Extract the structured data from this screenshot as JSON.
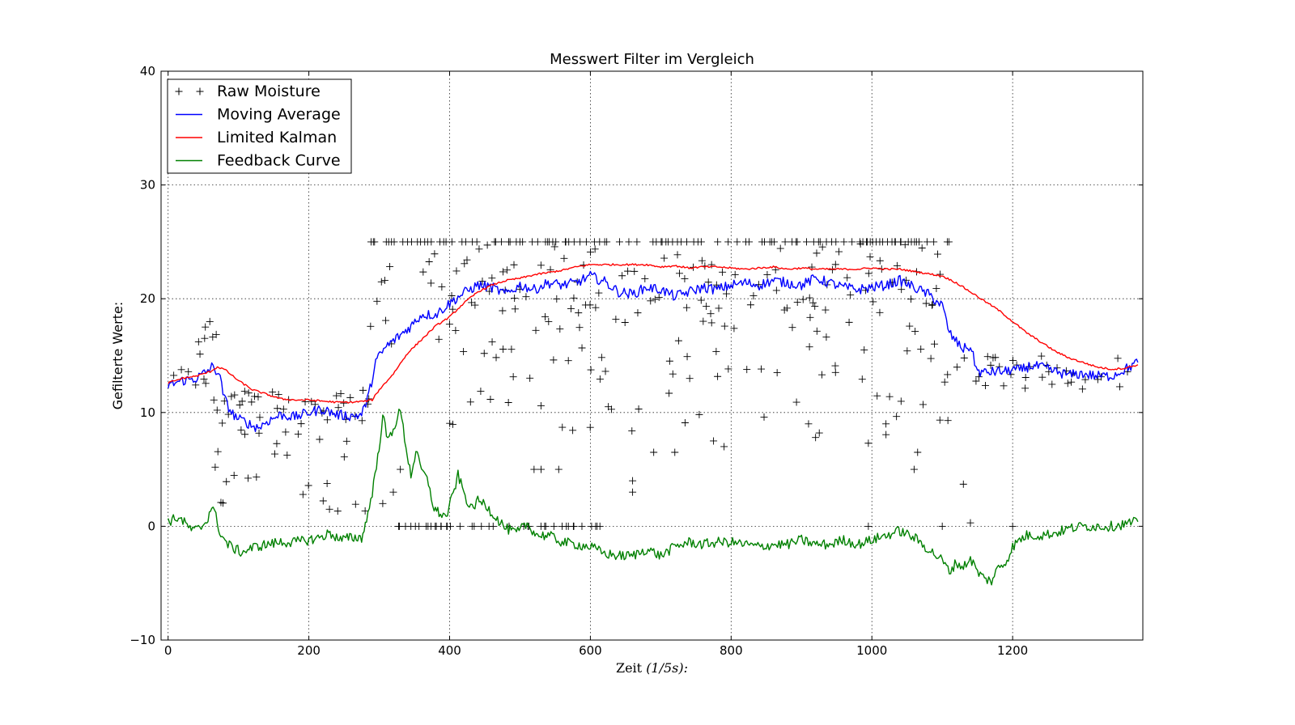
{
  "chart_data": {
    "type": "line",
    "title": "Messwert Filter im Vergleich",
    "xlabel": "Zeit",
    "xlabel_math": "(1/5s):",
    "ylabel": "Gefilterte Werte:",
    "xlim": [
      -10,
      1385
    ],
    "ylim": [
      -10,
      40
    ],
    "xticks": [
      0,
      200,
      400,
      600,
      800,
      1000,
      1200
    ],
    "yticks": [
      -10,
      0,
      10,
      20,
      30,
      40
    ],
    "xtick_labels": [
      "0",
      "200",
      "400",
      "600",
      "800",
      "1000",
      "1200"
    ],
    "ytick_labels": [
      "−10",
      "0",
      "10",
      "20",
      "30",
      "40"
    ],
    "grid": true,
    "legend_position": "top-left",
    "legend": [
      "Raw Moisture",
      "Moving Average",
      "Limited Kalman",
      "Feedback Curve"
    ],
    "series": [
      {
        "name": "Raw Moisture",
        "style": "markers",
        "marker": "+",
        "color": "#000000",
        "segments": [
          {
            "x0": 0,
            "x1": 60,
            "level": 13,
            "spread": 1
          },
          {
            "x0": 40,
            "x1": 70,
            "level": 16.5,
            "spread": 2
          },
          {
            "x0": 60,
            "x1": 285,
            "level": 10.5,
            "spread": 1.5
          },
          {
            "x0": 60,
            "x1": 285,
            "level": 5,
            "spread": 4
          },
          {
            "x0": 285,
            "x1": 400,
            "level": 20,
            "spread": 4
          },
          {
            "x0": 285,
            "x1": 1110,
            "level": 25,
            "spread": 0
          },
          {
            "x0": 400,
            "x1": 1110,
            "level": 22,
            "spread": 3
          },
          {
            "x0": 400,
            "x1": 1110,
            "level": 14,
            "spread": 6
          },
          {
            "x0": 320,
            "x1": 620,
            "level": 0,
            "spread": 0
          },
          {
            "x0": 1110,
            "x1": 1380,
            "level": 13.5,
            "spread": 1.5
          }
        ],
        "outliers": [
          {
            "x": 305,
            "y": 2
          },
          {
            "x": 320,
            "y": 3
          },
          {
            "x": 330,
            "y": 5
          },
          {
            "x": 530,
            "y": 5
          },
          {
            "x": 555,
            "y": 5
          },
          {
            "x": 520,
            "y": 5
          },
          {
            "x": 660,
            "y": 4
          },
          {
            "x": 660,
            "y": 3
          },
          {
            "x": 690,
            "y": 6.5
          },
          {
            "x": 720,
            "y": 6.5
          },
          {
            "x": 775,
            "y": 7.5
          },
          {
            "x": 790,
            "y": 7
          },
          {
            "x": 910,
            "y": 9
          },
          {
            "x": 920,
            "y": 7.8
          },
          {
            "x": 995,
            "y": 7.3
          },
          {
            "x": 1020,
            "y": 9
          },
          {
            "x": 1065,
            "y": 6.5
          },
          {
            "x": 1060,
            "y": 5
          },
          {
            "x": 1130,
            "y": 3.7
          },
          {
            "x": 1140,
            "y": 0.3
          },
          {
            "x": 1200,
            "y": 0
          },
          {
            "x": 1100,
            "y": 0
          },
          {
            "x": 995,
            "y": 0
          }
        ]
      },
      {
        "name": "Moving Average",
        "color": "#0000ff",
        "points": [
          [
            0,
            12.4
          ],
          [
            20,
            12.8
          ],
          [
            40,
            13.0
          ],
          [
            55,
            13.6
          ],
          [
            62,
            14.0
          ],
          [
            72,
            13.5
          ],
          [
            80,
            11.2
          ],
          [
            90,
            10.0
          ],
          [
            100,
            9.4
          ],
          [
            110,
            9.2
          ],
          [
            120,
            8.8
          ],
          [
            130,
            8.7
          ],
          [
            140,
            9.2
          ],
          [
            160,
            9.8
          ],
          [
            180,
            9.6
          ],
          [
            200,
            10.0
          ],
          [
            220,
            10.3
          ],
          [
            240,
            9.8
          ],
          [
            260,
            9.7
          ],
          [
            275,
            9.8
          ],
          [
            285,
            11.5
          ],
          [
            295,
            14.5
          ],
          [
            310,
            15.8
          ],
          [
            330,
            16.8
          ],
          [
            345,
            17.6
          ],
          [
            360,
            18.6
          ],
          [
            380,
            18.6
          ],
          [
            400,
            19.6
          ],
          [
            420,
            20.5
          ],
          [
            440,
            21.2
          ],
          [
            460,
            21.0
          ],
          [
            480,
            20.4
          ],
          [
            500,
            21.2
          ],
          [
            520,
            20.8
          ],
          [
            540,
            21.4
          ],
          [
            560,
            21.2
          ],
          [
            580,
            21.4
          ],
          [
            600,
            22.0
          ],
          [
            620,
            21.5
          ],
          [
            640,
            20.6
          ],
          [
            660,
            20.4
          ],
          [
            680,
            21.0
          ],
          [
            700,
            20.8
          ],
          [
            720,
            20.2
          ],
          [
            740,
            20.6
          ],
          [
            760,
            21.0
          ],
          [
            780,
            20.8
          ],
          [
            800,
            21.2
          ],
          [
            820,
            21.4
          ],
          [
            840,
            21.2
          ],
          [
            860,
            21.6
          ],
          [
            880,
            21.4
          ],
          [
            900,
            21.2
          ],
          [
            920,
            21.8
          ],
          [
            940,
            21.4
          ],
          [
            960,
            21.0
          ],
          [
            980,
            20.8
          ],
          [
            1000,
            21.0
          ],
          [
            1020,
            21.2
          ],
          [
            1040,
            21.6
          ],
          [
            1060,
            21.0
          ],
          [
            1080,
            20.4
          ],
          [
            1100,
            19.4
          ],
          [
            1110,
            17.0
          ],
          [
            1120,
            16.2
          ],
          [
            1130,
            15.6
          ],
          [
            1140,
            15.8
          ],
          [
            1150,
            13.6
          ],
          [
            1160,
            13.5
          ],
          [
            1175,
            13.6
          ],
          [
            1190,
            13.6
          ],
          [
            1200,
            13.8
          ],
          [
            1210,
            13.7
          ],
          [
            1225,
            14.1
          ],
          [
            1240,
            14.0
          ],
          [
            1260,
            13.6
          ],
          [
            1280,
            13.3
          ],
          [
            1300,
            13.4
          ],
          [
            1320,
            13.2
          ],
          [
            1340,
            13.2
          ],
          [
            1360,
            13.8
          ],
          [
            1378,
            14.4
          ]
        ]
      },
      {
        "name": "Limited Kalman",
        "color": "#ff0000",
        "points": [
          [
            0,
            12.6
          ],
          [
            20,
            13.0
          ],
          [
            40,
            13.2
          ],
          [
            60,
            13.6
          ],
          [
            70,
            14.0
          ],
          [
            80,
            13.8
          ],
          [
            100,
            12.8
          ],
          [
            120,
            12.0
          ],
          [
            140,
            11.6
          ],
          [
            160,
            11.2
          ],
          [
            180,
            11.1
          ],
          [
            200,
            11.1
          ],
          [
            220,
            11.0
          ],
          [
            240,
            10.9
          ],
          [
            260,
            10.9
          ],
          [
            280,
            11.0
          ],
          [
            290,
            11.1
          ],
          [
            300,
            12.0
          ],
          [
            320,
            13.4
          ],
          [
            340,
            15.2
          ],
          [
            360,
            16.4
          ],
          [
            380,
            17.6
          ],
          [
            400,
            18.4
          ],
          [
            420,
            19.6
          ],
          [
            440,
            20.6
          ],
          [
            460,
            21.2
          ],
          [
            480,
            21.6
          ],
          [
            500,
            21.8
          ],
          [
            520,
            22.1
          ],
          [
            540,
            22.3
          ],
          [
            560,
            22.5
          ],
          [
            580,
            22.8
          ],
          [
            600,
            23.0
          ],
          [
            620,
            23.0
          ],
          [
            640,
            23.0
          ],
          [
            660,
            23.0
          ],
          [
            680,
            23.0
          ],
          [
            700,
            22.8
          ],
          [
            720,
            22.9
          ],
          [
            740,
            22.7
          ],
          [
            760,
            22.8
          ],
          [
            780,
            22.8
          ],
          [
            800,
            22.7
          ],
          [
            820,
            22.6
          ],
          [
            840,
            22.7
          ],
          [
            860,
            22.8
          ],
          [
            880,
            22.6
          ],
          [
            900,
            22.7
          ],
          [
            920,
            22.6
          ],
          [
            940,
            22.6
          ],
          [
            960,
            22.6
          ],
          [
            980,
            22.6
          ],
          [
            1000,
            22.7
          ],
          [
            1020,
            22.6
          ],
          [
            1040,
            22.6
          ],
          [
            1060,
            22.4
          ],
          [
            1080,
            22.2
          ],
          [
            1100,
            22.0
          ],
          [
            1120,
            21.4
          ],
          [
            1140,
            20.6
          ],
          [
            1160,
            19.8
          ],
          [
            1180,
            19.0
          ],
          [
            1200,
            18.0
          ],
          [
            1220,
            17.0
          ],
          [
            1240,
            16.2
          ],
          [
            1260,
            15.4
          ],
          [
            1280,
            14.8
          ],
          [
            1300,
            14.4
          ],
          [
            1320,
            14.0
          ],
          [
            1340,
            13.8
          ],
          [
            1360,
            13.9
          ],
          [
            1378,
            14.2
          ]
        ]
      },
      {
        "name": "Feedback Curve",
        "color": "#008000",
        "points": [
          [
            0,
            0.4
          ],
          [
            15,
            0.8
          ],
          [
            25,
            0.2
          ],
          [
            35,
            -0.4
          ],
          [
            45,
            -0.2
          ],
          [
            55,
            0.5
          ],
          [
            62,
            1.8
          ],
          [
            68,
            0.8
          ],
          [
            75,
            -0.8
          ],
          [
            85,
            -1.6
          ],
          [
            95,
            -2.0
          ],
          [
            105,
            -2.3
          ],
          [
            115,
            -2.0
          ],
          [
            125,
            -1.8
          ],
          [
            140,
            -1.6
          ],
          [
            160,
            -1.4
          ],
          [
            180,
            -1.4
          ],
          [
            200,
            -1.2
          ],
          [
            215,
            -1.0
          ],
          [
            230,
            -0.6
          ],
          [
            245,
            -1.2
          ],
          [
            260,
            -1.0
          ],
          [
            275,
            -1.0
          ],
          [
            282,
            0.5
          ],
          [
            290,
            3.0
          ],
          [
            298,
            6.0
          ],
          [
            305,
            9.8
          ],
          [
            312,
            7.5
          ],
          [
            320,
            8.6
          ],
          [
            330,
            10.2
          ],
          [
            338,
            7.0
          ],
          [
            345,
            4.5
          ],
          [
            352,
            6.5
          ],
          [
            360,
            5.0
          ],
          [
            370,
            3.8
          ],
          [
            378,
            1.5
          ],
          [
            385,
            1.2
          ],
          [
            395,
            0.8
          ],
          [
            405,
            2.8
          ],
          [
            412,
            4.5
          ],
          [
            420,
            3.0
          ],
          [
            430,
            1.5
          ],
          [
            440,
            2.2
          ],
          [
            450,
            2.0
          ],
          [
            460,
            1.2
          ],
          [
            470,
            0.5
          ],
          [
            480,
            -0.2
          ],
          [
            495,
            -0.6
          ],
          [
            510,
            0.2
          ],
          [
            525,
            -0.8
          ],
          [
            540,
            -0.8
          ],
          [
            560,
            -1.4
          ],
          [
            580,
            -1.6
          ],
          [
            600,
            -1.8
          ],
          [
            620,
            -2.4
          ],
          [
            640,
            -2.6
          ],
          [
            660,
            -2.6
          ],
          [
            680,
            -2.0
          ],
          [
            700,
            -2.6
          ],
          [
            720,
            -1.8
          ],
          [
            740,
            -1.4
          ],
          [
            760,
            -1.6
          ],
          [
            780,
            -1.4
          ],
          [
            800,
            -1.4
          ],
          [
            820,
            -1.6
          ],
          [
            840,
            -1.8
          ],
          [
            860,
            -1.6
          ],
          [
            880,
            -1.6
          ],
          [
            900,
            -1.2
          ],
          [
            920,
            -1.6
          ],
          [
            940,
            -1.6
          ],
          [
            960,
            -1.2
          ],
          [
            980,
            -1.6
          ],
          [
            1000,
            -1.2
          ],
          [
            1020,
            -0.8
          ],
          [
            1040,
            -0.4
          ],
          [
            1060,
            -1.0
          ],
          [
            1080,
            -2.0
          ],
          [
            1100,
            -3.0
          ],
          [
            1110,
            -4.0
          ],
          [
            1120,
            -3.2
          ],
          [
            1130,
            -3.6
          ],
          [
            1140,
            -2.8
          ],
          [
            1150,
            -4.0
          ],
          [
            1160,
            -4.6
          ],
          [
            1170,
            -4.8
          ],
          [
            1180,
            -3.6
          ],
          [
            1190,
            -3.2
          ],
          [
            1200,
            -1.8
          ],
          [
            1210,
            -1.2
          ],
          [
            1220,
            -0.8
          ],
          [
            1240,
            -0.8
          ],
          [
            1260,
            -0.6
          ],
          [
            1280,
            -0.2
          ],
          [
            1300,
            0.0
          ],
          [
            1320,
            0.0
          ],
          [
            1340,
            0.0
          ],
          [
            1360,
            0.2
          ],
          [
            1378,
            0.4
          ]
        ]
      }
    ]
  }
}
